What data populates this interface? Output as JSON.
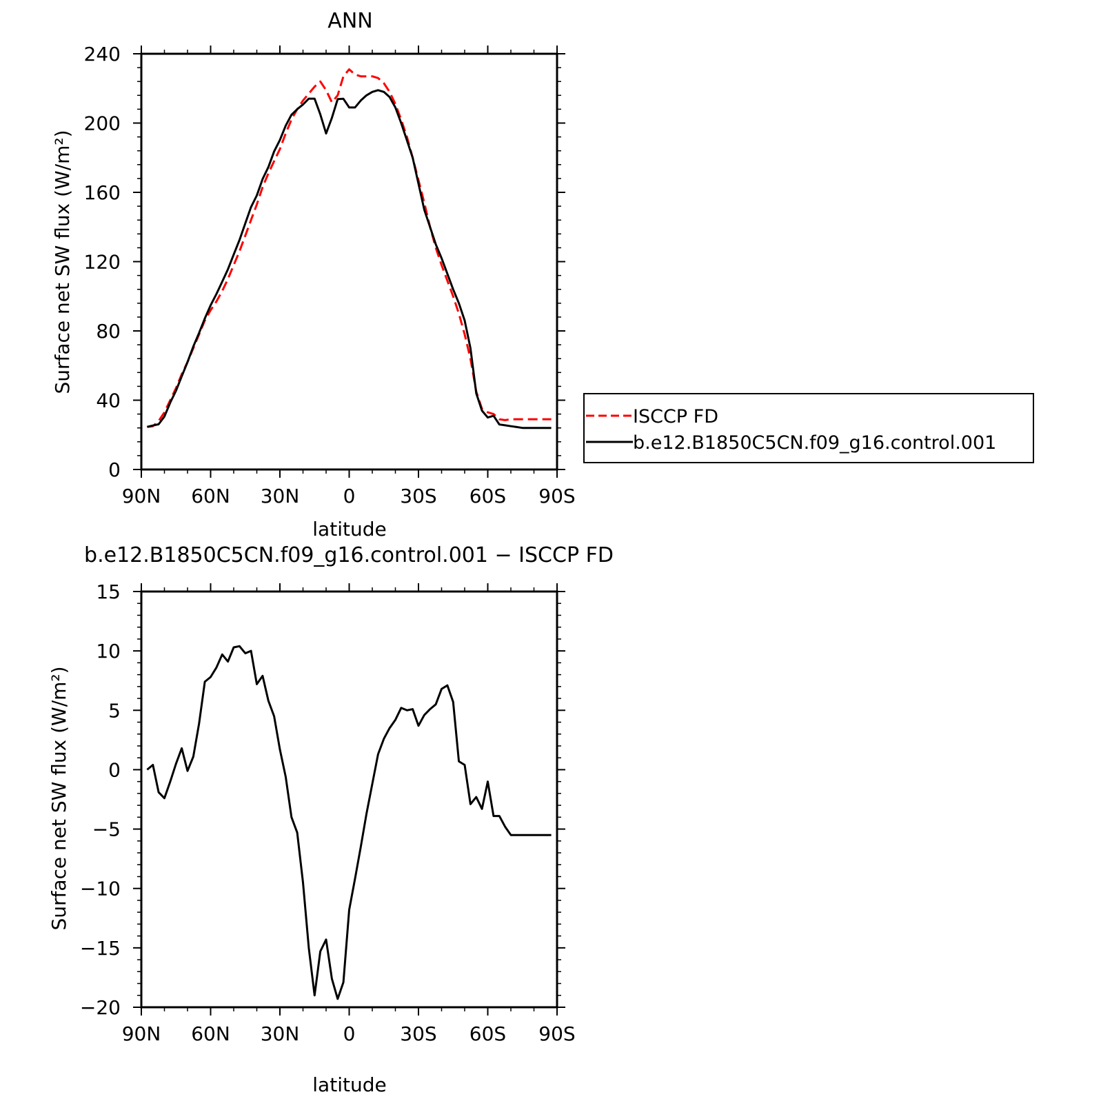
{
  "chart_data": [
    {
      "type": "line",
      "title": "ANN",
      "xlabel": "latitude",
      "ylabel": "Surface net SW flux (W/m²)",
      "x_ticks": [
        -90,
        -60,
        -30,
        0,
        30,
        60,
        90
      ],
      "x_tick_labels": [
        "90N",
        "60N",
        "30N",
        "0",
        "30S",
        "60S",
        "90S"
      ],
      "y_ticks": [
        0,
        40,
        80,
        120,
        160,
        200,
        240
      ],
      "y_tick_labels": [
        "0",
        "40",
        "80",
        "120",
        "160",
        "200",
        "240"
      ],
      "xlim": [
        -90,
        90
      ],
      "ylim": [
        0,
        240
      ],
      "legend_position": "right",
      "series": [
        {
          "name": "ISCCP FD",
          "color": "#ff0000",
          "dash": "dashed",
          "x": [
            -87.5,
            -85,
            -82.5,
            -80,
            -77.5,
            -75,
            -72.5,
            -70,
            -67.5,
            -65,
            -62.5,
            -60,
            -57.5,
            -55,
            -52.5,
            -50,
            -47.5,
            -45,
            -42.5,
            -40,
            -37.5,
            -35,
            -32.5,
            -30,
            -27.5,
            -25,
            -22.5,
            -20,
            -17.5,
            -15,
            -12.5,
            -10,
            -7.5,
            -5,
            -2.5,
            0,
            2.5,
            5,
            7.5,
            10,
            12.5,
            15,
            17.5,
            20,
            22.5,
            25,
            27.5,
            30,
            32.5,
            35,
            37.5,
            40,
            42.5,
            45,
            47.5,
            50,
            52.5,
            55,
            57.5,
            60,
            62.5,
            65,
            67.5,
            70,
            72.5,
            75,
            77.5,
            80,
            82.5,
            85,
            87.5
          ],
          "y": [
            24.6,
            25.0,
            28,
            33,
            40,
            47,
            55,
            62,
            70,
            78,
            86,
            92,
            97,
            103,
            110,
            118,
            126,
            135,
            144,
            153,
            163,
            171,
            178,
            185,
            194,
            202,
            208,
            213,
            217,
            221,
            224,
            219,
            212,
            216,
            227,
            231,
            228,
            227,
            227,
            227,
            226,
            223,
            218,
            211,
            202,
            192,
            180,
            167,
            154,
            140,
            128,
            118,
            109,
            100,
            90,
            78,
            64,
            45,
            35,
            33,
            32,
            29,
            28.5,
            29,
            29,
            29,
            29,
            29,
            29,
            29,
            29
          ],
          "points": 71
        },
        {
          "name": "b.e12.B1850C5CN.f09_g16.control.001",
          "color": "#000000",
          "dash": "solid",
          "x": [
            -87.5,
            -85,
            -82.5,
            -80,
            -77.5,
            -75,
            -72.5,
            -70,
            -67.5,
            -65,
            -62.5,
            -60,
            -57.5,
            -55,
            -52.5,
            -50,
            -47.5,
            -45,
            -42.5,
            -40,
            -37.5,
            -35,
            -32.5,
            -30,
            -27.5,
            -25,
            -22.5,
            -20,
            -17.5,
            -15,
            -12.5,
            -10,
            -7.5,
            -5,
            -2.5,
            0,
            2.5,
            5,
            7.5,
            10,
            12.5,
            15,
            17.5,
            20,
            22.5,
            25,
            27.5,
            30,
            32.5,
            35,
            37.5,
            40,
            42.5,
            45,
            47.5,
            50,
            52.5,
            55,
            57.5,
            60,
            62.5,
            65,
            67.5,
            70,
            72.5,
            75,
            77.5,
            80,
            82.5,
            85,
            87.5
          ],
          "y": [
            24.6,
            25.4,
            26.1,
            30.6,
            38.6,
            45.5,
            53.8,
            62.0,
            71.0,
            78.9,
            87.2,
            94.8,
            101.3,
            108.4,
            115.6,
            124.1,
            132.5,
            142.1,
            151.5,
            158.2,
            167.7,
            174.6,
            183.6,
            190.2,
            198.5,
            204.8,
            208.0,
            210.7,
            214.1,
            214.1,
            205.0,
            194.0,
            203.0,
            213.8,
            214.0,
            209.0,
            209.0,
            213.0,
            216.0,
            218.0,
            219.0,
            218.0,
            215.0,
            209.0,
            200.0,
            190.0,
            180.0,
            165.0,
            150.0,
            140.0,
            130.0,
            122.0,
            113.0,
            104.0,
            96.0,
            86.0,
            70.0,
            44.0,
            34.0,
            30.0,
            31.0,
            26.0,
            25.5,
            25.0,
            24.5,
            24.0,
            24.0,
            24.0,
            24.0,
            24.0,
            24.0
          ],
          "points": 71
        }
      ]
    },
    {
      "type": "line",
      "title": "b.e12.B1850C5CN.f09_g16.control.001 − ISCCP FD",
      "xlabel": "latitude",
      "ylabel": "Surface net SW flux (W/m²)",
      "x_ticks": [
        -90,
        -60,
        -30,
        0,
        30,
        60,
        90
      ],
      "x_tick_labels": [
        "90N",
        "60N",
        "30N",
        "0",
        "30S",
        "60S",
        "90S"
      ],
      "y_ticks": [
        -20,
        -15,
        -10,
        -5,
        0,
        5,
        10,
        15
      ],
      "y_tick_labels": [
        "−20",
        "−15",
        "−10",
        "−5",
        "0",
        "5",
        "10",
        "15"
      ],
      "xlim": [
        -90,
        90
      ],
      "ylim": [
        -20,
        15
      ],
      "series": [
        {
          "color": "#000000",
          "dash": "solid",
          "x": [
            -87.5,
            -85,
            -82.5,
            -80,
            -77.5,
            -75,
            -72.5,
            -70,
            -67.5,
            -65,
            -62.5,
            -60,
            -57.5,
            -55,
            -52.5,
            -50,
            -47.5,
            -45,
            -42.5,
            -40,
            -37.5,
            -35,
            -32.5,
            -30,
            -27.5,
            -25,
            -22.5,
            -20,
            -17.5,
            -15,
            -12.5,
            -10,
            -7.5,
            -5,
            -2.5,
            0,
            2.5,
            5,
            7.5,
            10,
            12.5,
            15,
            17.5,
            20,
            22.5,
            25,
            27.5,
            30,
            32.5,
            35,
            37.5,
            40,
            42.5,
            45,
            47.5,
            50,
            52.5,
            55,
            57.5,
            60,
            62.5,
            65,
            67.5,
            70,
            72.5,
            75,
            77.5,
            80,
            82.5,
            85,
            87.5
          ],
          "y": [
            0.0,
            0.4,
            -1.9,
            -2.4,
            -1.0,
            0.5,
            1.8,
            -0.1,
            1.1,
            3.9,
            7.4,
            7.8,
            8.6,
            9.7,
            9.1,
            10.3,
            10.4,
            9.8,
            10.0,
            7.2,
            7.9,
            5.8,
            4.5,
            1.7,
            -0.6,
            -4.0,
            -5.3,
            -9.5,
            -15.0,
            -19.0,
            -15.3,
            -14.3,
            -17.6,
            -19.3,
            -17.9,
            -11.8,
            -9.2,
            -6.5,
            -3.7,
            -1.2,
            1.3,
            2.6,
            3.5,
            4.2,
            5.2,
            5.0,
            5.1,
            3.7,
            4.6,
            5.1,
            5.5,
            6.8,
            7.1,
            5.7,
            0.7,
            0.4,
            -2.9,
            -2.3,
            -3.3,
            -1.0,
            -3.9,
            -3.9,
            -4.8,
            -5.5,
            -5.5,
            -5.5,
            -5.5,
            -5.5,
            -5.5,
            -5.5,
            -5.5
          ],
          "points": 71
        }
      ]
    }
  ]
}
